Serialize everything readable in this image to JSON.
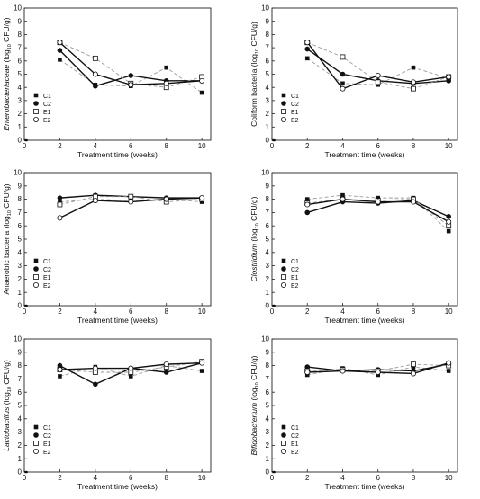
{
  "chart_data": [
    {
      "type": "line",
      "ylabel_italic": "Enterobacteriaceae",
      "ylabel_rest": " (log",
      "ylabel_sub": "10",
      "ylabel_end": " CFU/g)",
      "xlabel": "Treatment time (weeks)",
      "x": [
        2,
        4,
        6,
        8,
        10
      ],
      "xlim": [
        0,
        10.5
      ],
      "ylim": [
        0,
        10
      ],
      "xticks": [
        "0",
        "2",
        "4",
        "6",
        "8",
        "10"
      ],
      "yticks": [
        "0",
        "1",
        "2",
        "3",
        "4",
        "5",
        "6",
        "7",
        "8",
        "9",
        "10"
      ],
      "legend_position": "lower-left",
      "series": [
        {
          "name": "C1",
          "marker": "filled-square",
          "line": "dashed",
          "values": [
            6.1,
            4.2,
            4.1,
            5.5,
            3.6
          ]
        },
        {
          "name": "C2",
          "marker": "filled-circle",
          "line": "solid",
          "values": [
            6.8,
            4.1,
            4.9,
            4.5,
            4.5
          ]
        },
        {
          "name": "E1",
          "marker": "open-square",
          "line": "dashed",
          "values": [
            7.4,
            6.2,
            4.3,
            4.0,
            4.8
          ]
        },
        {
          "name": "E2",
          "marker": "open-circle",
          "line": "solid",
          "values": [
            7.4,
            5.0,
            4.2,
            4.3,
            4.5
          ]
        }
      ]
    },
    {
      "type": "line",
      "ylabel_italic": "",
      "ylabel_rest": "Coliform bacteria (log",
      "ylabel_sub": "10",
      "ylabel_end": " CFU/g)",
      "xlabel": "Treatment time (weeks)",
      "x": [
        2,
        4,
        6,
        8,
        10
      ],
      "xlim": [
        0,
        10.5
      ],
      "ylim": [
        0,
        10
      ],
      "xticks": [
        "0",
        "2",
        "4",
        "6",
        "8",
        "10"
      ],
      "yticks": [
        "0",
        "1",
        "2",
        "3",
        "4",
        "5",
        "6",
        "7",
        "8",
        "9",
        "10"
      ],
      "legend_position": "lower-left",
      "series": [
        {
          "name": "C1",
          "marker": "filled-square",
          "line": "dashed",
          "values": [
            6.2,
            4.3,
            4.2,
            5.5,
            4.7
          ]
        },
        {
          "name": "C2",
          "marker": "filled-circle",
          "line": "solid",
          "values": [
            6.9,
            5.0,
            4.5,
            4.3,
            4.5
          ]
        },
        {
          "name": "E1",
          "marker": "open-square",
          "line": "dashed",
          "values": [
            7.4,
            6.3,
            4.4,
            3.9,
            4.8
          ]
        },
        {
          "name": "E2",
          "marker": "open-circle",
          "line": "solid",
          "values": [
            7.4,
            3.9,
            4.9,
            4.4,
            4.8
          ]
        }
      ]
    },
    {
      "type": "line",
      "ylabel_italic": "",
      "ylabel_rest": "Anaerobic bacteria (log",
      "ylabel_sub": "10",
      "ylabel_end": " CFU/g)",
      "xlabel": "Treatment time (weeks)",
      "x": [
        2,
        4,
        6,
        8,
        10
      ],
      "xlim": [
        0,
        10.5
      ],
      "ylim": [
        0,
        10
      ],
      "xticks": [
        "0",
        "2",
        "4",
        "6",
        "8",
        "10"
      ],
      "yticks": [
        "0",
        "1",
        "2",
        "3",
        "4",
        "5",
        "6",
        "7",
        "8",
        "9",
        "10"
      ],
      "legend_position": "lower-left",
      "series": [
        {
          "name": "C1",
          "marker": "filled-square",
          "line": "dashed",
          "values": [
            7.8,
            8.0,
            7.9,
            8.0,
            7.8
          ]
        },
        {
          "name": "C2",
          "marker": "filled-circle",
          "line": "solid",
          "values": [
            8.1,
            8.3,
            8.2,
            8.1,
            8.1
          ]
        },
        {
          "name": "E1",
          "marker": "open-square",
          "line": "dashed",
          "values": [
            7.6,
            8.2,
            8.2,
            7.8,
            8.0
          ]
        },
        {
          "name": "E2",
          "marker": "open-circle",
          "line": "solid",
          "values": [
            6.6,
            7.9,
            7.8,
            8.0,
            8.1
          ]
        }
      ]
    },
    {
      "type": "line",
      "ylabel_italic": "Clostridium",
      "ylabel_rest": " (log",
      "ylabel_sub": "10",
      "ylabel_end": " CFU/g)",
      "xlabel": "Treatment time (weeks)",
      "x": [
        2,
        4,
        6,
        8,
        10
      ],
      "xlim": [
        0,
        10.5
      ],
      "ylim": [
        0,
        10
      ],
      "xticks": [
        "0",
        "2",
        "4",
        "6",
        "8",
        "10"
      ],
      "yticks": [
        "0",
        "1",
        "2",
        "3",
        "4",
        "5",
        "6",
        "7",
        "8",
        "9",
        "10"
      ],
      "legend_position": "lower-left",
      "series": [
        {
          "name": "C1",
          "marker": "filled-square",
          "line": "dashed",
          "values": [
            8.0,
            8.3,
            8.1,
            8.1,
            5.6
          ]
        },
        {
          "name": "C2",
          "marker": "filled-circle",
          "line": "solid",
          "values": [
            7.0,
            7.8,
            7.7,
            7.9,
            6.7
          ]
        },
        {
          "name": "E1",
          "marker": "open-square",
          "line": "dashed",
          "values": [
            7.7,
            8.0,
            7.9,
            8.0,
            6.0
          ]
        },
        {
          "name": "E2",
          "marker": "open-circle",
          "line": "solid",
          "values": [
            7.6,
            8.0,
            7.8,
            7.8,
            6.3
          ]
        }
      ]
    },
    {
      "type": "line",
      "ylabel_italic": "Lactobacillus",
      "ylabel_rest": " (log",
      "ylabel_sub": "10",
      "ylabel_end": " CFU/g)",
      "xlabel": "Treatment time (weeks)",
      "x": [
        2,
        4,
        6,
        8,
        10
      ],
      "xlim": [
        0,
        10.5
      ],
      "ylim": [
        0,
        10
      ],
      "xticks": [
        "0",
        "2",
        "4",
        "6",
        "8",
        "10"
      ],
      "yticks": [
        "0",
        "1",
        "2",
        "3",
        "4",
        "5",
        "6",
        "7",
        "8",
        "9",
        "10"
      ],
      "legend_position": "lower-left",
      "series": [
        {
          "name": "C1",
          "marker": "filled-square",
          "line": "dashed",
          "values": [
            7.2,
            7.9,
            7.2,
            8.0,
            7.6
          ]
        },
        {
          "name": "C2",
          "marker": "filled-circle",
          "line": "solid",
          "values": [
            8.0,
            6.6,
            7.8,
            7.5,
            8.2
          ]
        },
        {
          "name": "E1",
          "marker": "open-square",
          "line": "dashed",
          "values": [
            7.7,
            7.5,
            7.5,
            7.9,
            8.3
          ]
        },
        {
          "name": "E2",
          "marker": "open-circle",
          "line": "solid",
          "values": [
            7.7,
            7.8,
            7.8,
            8.1,
            8.2
          ]
        }
      ]
    },
    {
      "type": "line",
      "ylabel_italic": "Bifidobacterium",
      "ylabel_rest": " (log",
      "ylabel_sub": "10",
      "ylabel_end": " CFU/g)",
      "xlabel": "Treatment time (weeks)",
      "x": [
        2,
        4,
        6,
        8,
        10
      ],
      "xlim": [
        0,
        10.5
      ],
      "ylim": [
        0,
        10
      ],
      "xticks": [
        "0",
        "2",
        "4",
        "6",
        "8",
        "10"
      ],
      "yticks": [
        "0",
        "1",
        "2",
        "3",
        "4",
        "5",
        "6",
        "7",
        "8",
        "9",
        "10"
      ],
      "legend_position": "lower-left",
      "series": [
        {
          "name": "C1",
          "marker": "filled-square",
          "line": "dashed",
          "values": [
            7.3,
            7.8,
            7.3,
            7.9,
            7.6
          ]
        },
        {
          "name": "C2",
          "marker": "filled-circle",
          "line": "solid",
          "values": [
            7.9,
            7.6,
            7.7,
            7.6,
            8.1
          ]
        },
        {
          "name": "E1",
          "marker": "open-square",
          "line": "dashed",
          "values": [
            7.6,
            7.7,
            7.6,
            8.1,
            8.0
          ]
        },
        {
          "name": "E2",
          "marker": "open-circle",
          "line": "solid",
          "values": [
            7.5,
            7.6,
            7.5,
            7.4,
            8.2
          ]
        }
      ]
    }
  ]
}
